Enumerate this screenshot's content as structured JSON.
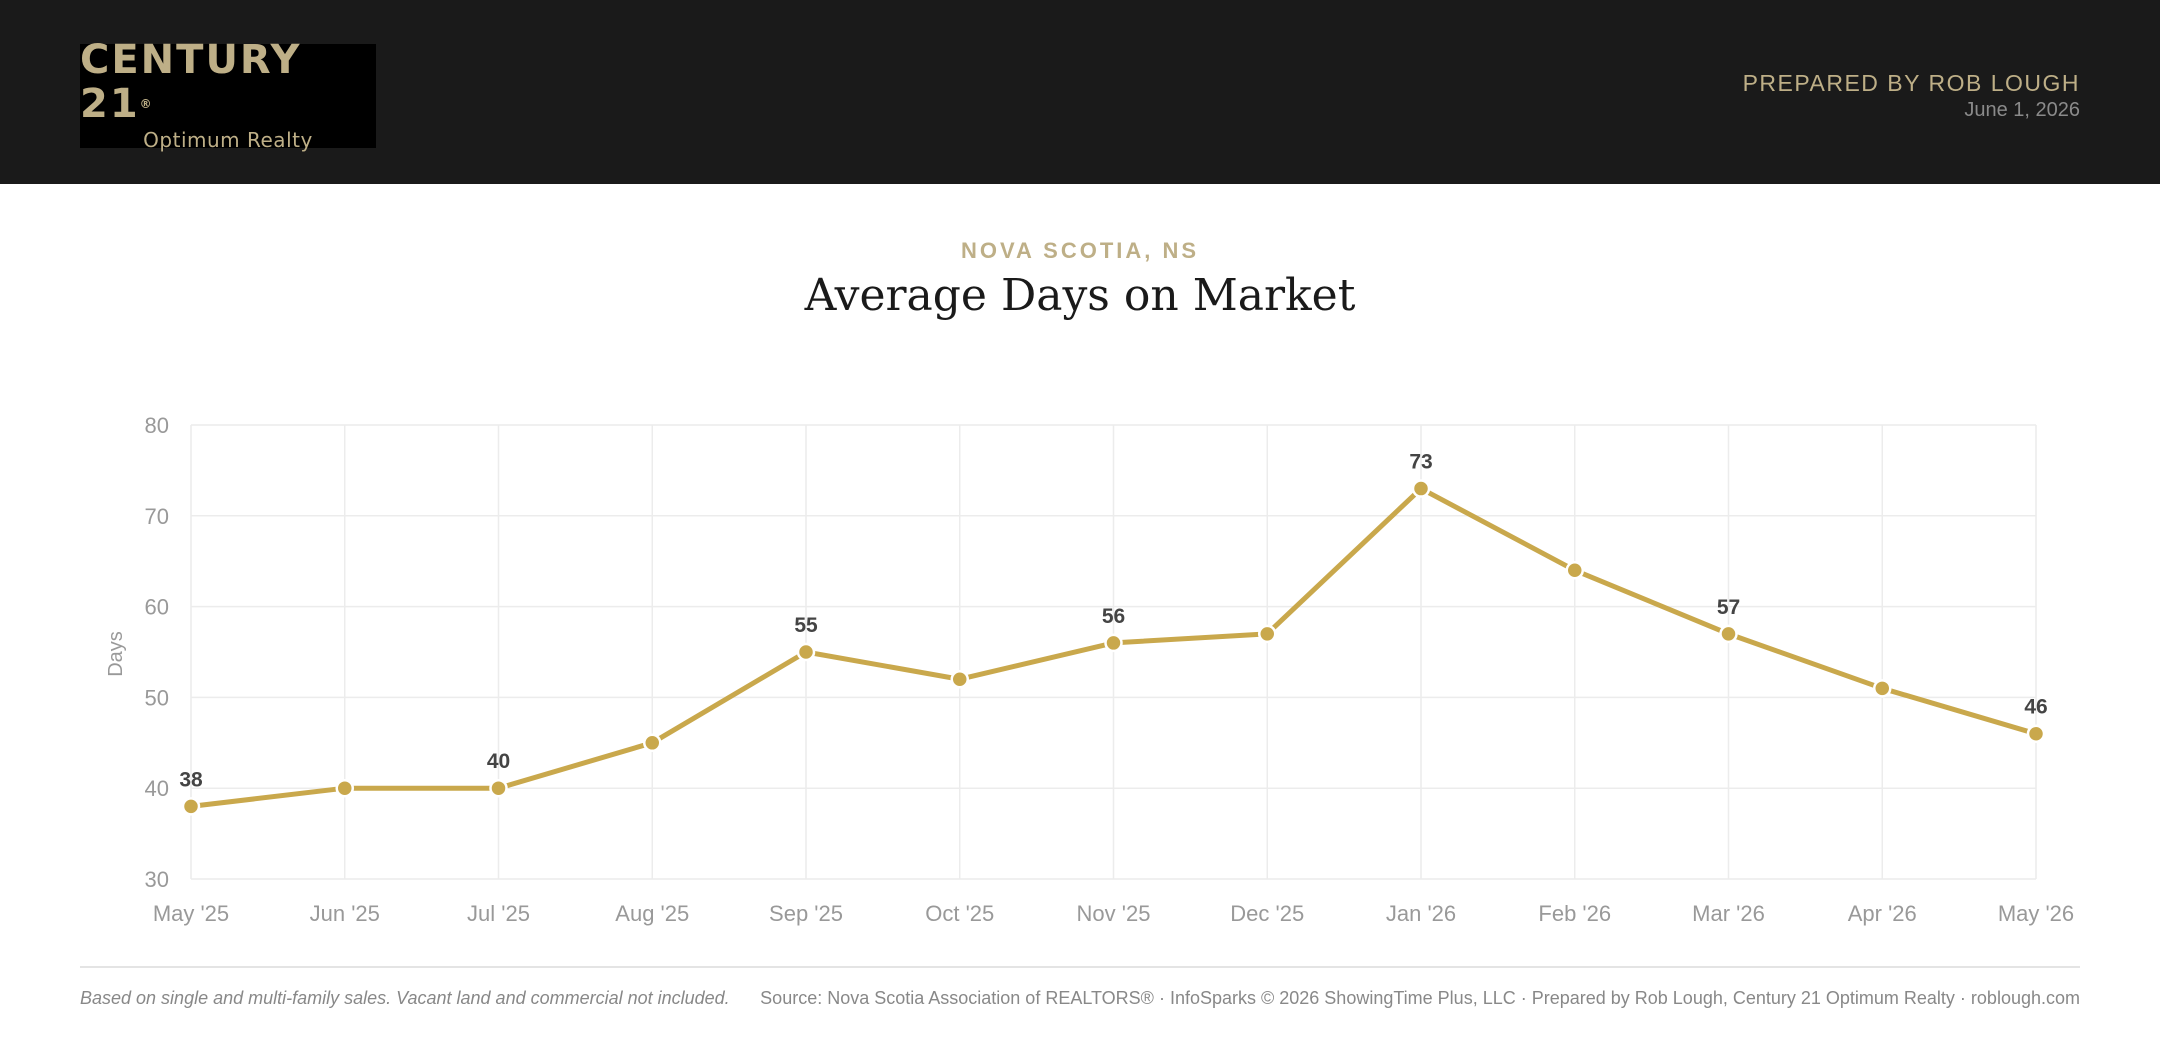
{
  "header": {
    "logo_brand": "CENTURY 21",
    "logo_mark": "®",
    "logo_sub": "Optimum Realty",
    "prepared_by": "PREPARED BY ROB LOUGH",
    "date": "June 1, 2026"
  },
  "colors": {
    "gold": "#c9a84c",
    "header_bg": "#1a1a1a",
    "accent_text": "#beaf87"
  },
  "chart_data": {
    "type": "line",
    "subtitle": "NOVA SCOTIA, NS",
    "title": "Average Days on Market",
    "xlabel": "",
    "ylabel": "Days",
    "categories": [
      "May '25",
      "Jun '25",
      "Jul '25",
      "Aug '25",
      "Sep '25",
      "Oct '25",
      "Nov '25",
      "Dec '25",
      "Jan '26",
      "Feb '26",
      "Mar '26",
      "Apr '26",
      "May '26"
    ],
    "values": [
      38,
      40,
      40,
      45,
      55,
      52,
      56,
      57,
      73,
      64,
      57,
      51,
      46
    ],
    "labeled_points": [
      0,
      2,
      4,
      6,
      8,
      10,
      12
    ],
    "ylim": [
      30,
      80
    ],
    "yticks": [
      30,
      40,
      50,
      60,
      70,
      80
    ],
    "grid": true,
    "legend": "none"
  },
  "footer": {
    "note": "Based on single and multi-family sales. Vacant land and commercial not included.",
    "source": "Source: Nova Scotia Association of REALTORS® · InfoSparks © 2026 ShowingTime Plus, LLC · Prepared by Rob Lough, Century 21 Optimum Realty · roblough.com"
  }
}
